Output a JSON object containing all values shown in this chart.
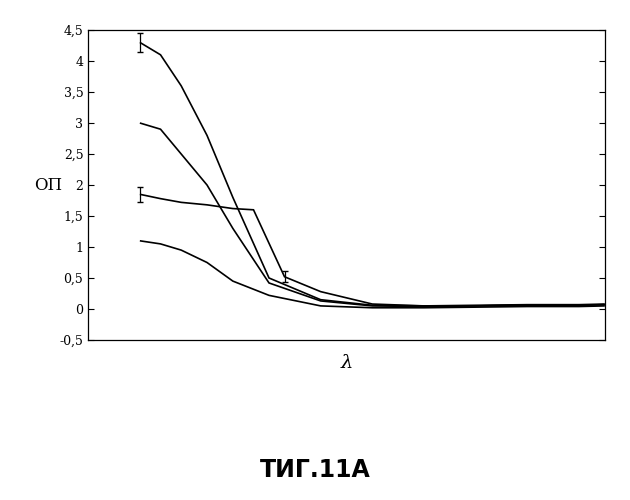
{
  "xlabel": "λ",
  "ylabel": "ОП",
  "ylim": [
    -0.5,
    4.5
  ],
  "xlim": [
    0,
    10
  ],
  "yticks": [
    -0.5,
    0,
    0.5,
    1,
    1.5,
    2,
    2.5,
    3,
    3.5,
    4,
    4.5
  ],
  "ytick_labels": [
    "-0,5",
    "0",
    "0,5",
    "1",
    "1,5",
    "2",
    "2,5",
    "3",
    "3,5",
    "4",
    "4,5"
  ],
  "background_color": "#ffffff",
  "curves": [
    {
      "x": [
        1,
        1.4,
        1.8,
        2.3,
        2.8,
        3.5,
        4.5,
        5.5,
        6.5,
        7.5,
        8.5,
        9.5,
        10
      ],
      "y": [
        4.3,
        4.1,
        3.6,
        2.8,
        1.8,
        0.5,
        0.15,
        0.06,
        0.05,
        0.06,
        0.07,
        0.07,
        0.08
      ],
      "error_bars": [
        {
          "idx": 0,
          "yerr": 0.15
        }
      ]
    },
    {
      "x": [
        1,
        1.4,
        1.8,
        2.3,
        2.8,
        3.5,
        4.5,
        5.5,
        6.5,
        7.5,
        8.5,
        9.5,
        10
      ],
      "y": [
        3.0,
        2.9,
        2.5,
        2.0,
        1.3,
        0.42,
        0.13,
        0.05,
        0.04,
        0.05,
        0.06,
        0.06,
        0.07
      ],
      "error_bars": []
    },
    {
      "x": [
        1,
        1.4,
        1.8,
        2.3,
        2.8,
        3.2,
        3.8,
        4.5,
        5.5,
        6.5,
        7.5,
        8.5,
        9.5,
        10
      ],
      "y": [
        1.85,
        1.78,
        1.72,
        1.68,
        1.62,
        1.6,
        0.52,
        0.28,
        0.08,
        0.05,
        0.05,
        0.06,
        0.06,
        0.07
      ],
      "error_bars": [
        {
          "idx": 0,
          "yerr": 0.12
        },
        {
          "idx": 6,
          "yerr": 0.09
        }
      ]
    },
    {
      "x": [
        1,
        1.4,
        1.8,
        2.3,
        2.8,
        3.5,
        4.5,
        5.5,
        6.5,
        7.5,
        8.5,
        9.5,
        10
      ],
      "y": [
        1.1,
        1.05,
        0.95,
        0.75,
        0.45,
        0.22,
        0.05,
        0.02,
        0.02,
        0.03,
        0.04,
        0.04,
        0.05
      ],
      "error_bars": []
    }
  ],
  "fig_width": 6.3,
  "fig_height": 5.0,
  "dpi": 100
}
